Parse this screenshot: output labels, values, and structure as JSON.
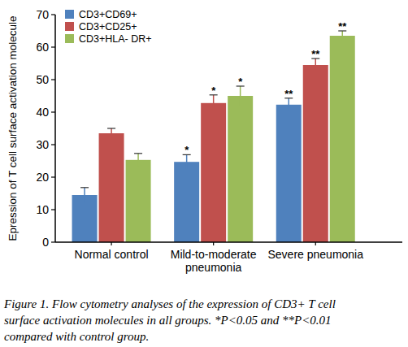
{
  "chart_data": {
    "type": "bar",
    "y_label": "Epression of T cell surface activation molecule",
    "categories": [
      "Normal control",
      "Mild-to-moderate pneumonia",
      "Severe pneumonia"
    ],
    "series": [
      {
        "name": "CD3+CD69+",
        "color": "#4f81bd",
        "values": [
          14.5,
          24.7,
          42.3
        ],
        "errors": [
          2.3,
          2.2,
          2.0
        ],
        "significance": [
          null,
          "*",
          "**"
        ]
      },
      {
        "name": "CD3+CD25+",
        "color": "#c0504d",
        "values": [
          33.5,
          42.8,
          54.5
        ],
        "errors": [
          1.5,
          2.5,
          2.0
        ],
        "significance": [
          null,
          "*",
          "**"
        ]
      },
      {
        "name": "CD3+HLA- DR+",
        "color": "#9bbb59",
        "values": [
          25.3,
          45.0,
          63.5
        ],
        "errors": [
          2.0,
          3.0,
          1.5
        ],
        "significance": [
          null,
          "*",
          "**"
        ]
      }
    ],
    "ylim": [
      0,
      70
    ],
    "yticks": [
      0,
      10,
      20,
      30,
      40,
      50,
      60,
      70
    ],
    "grid": false,
    "legend": "top-left",
    "caption": [
      "Figure 1. Flow cytometry analyses of the expression of CD3+ T cell",
      "surface activation molecules in all groups. *P<0.05 and **P<0.01",
      "compared with control group."
    ]
  }
}
